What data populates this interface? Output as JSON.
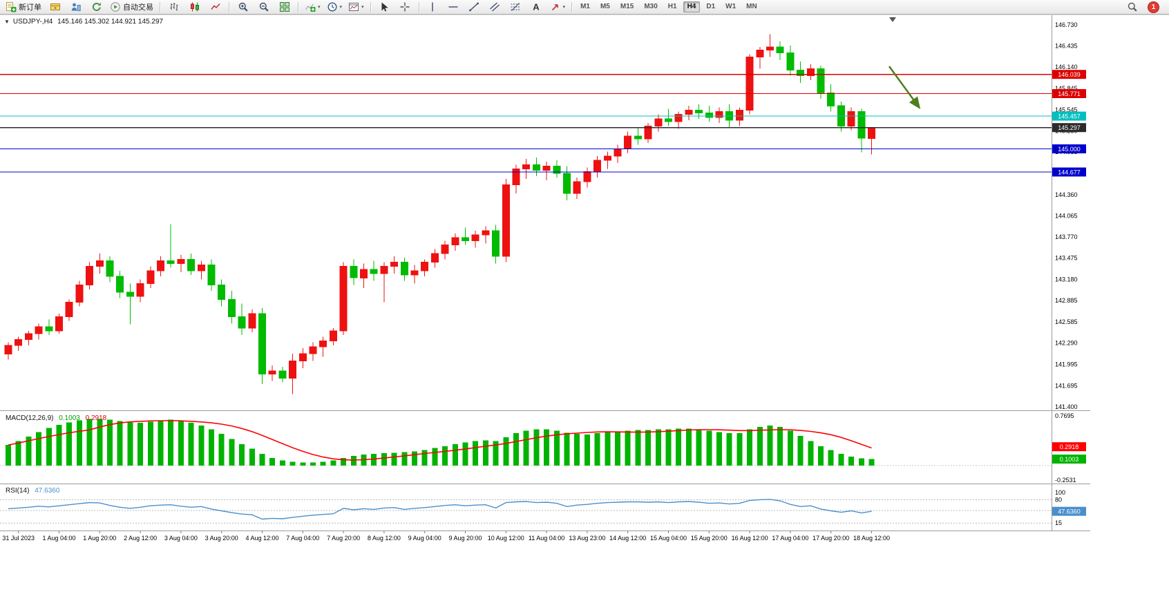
{
  "toolbar": {
    "button_groups": [
      [
        {
          "name": "new-order-button",
          "icon": "new-order-icon",
          "label": "新订单"
        },
        {
          "name": "market-watch-button",
          "icon": "market-watch-icon"
        },
        {
          "name": "navigator-button",
          "icon": "navigator-icon"
        },
        {
          "name": "refresh-button",
          "icon": "refresh-icon"
        },
        {
          "name": "auto-trading-button",
          "icon": "auto-trading-icon",
          "label": "自动交易"
        }
      ],
      [
        {
          "name": "bar-chart-button",
          "icon": "bar-chart-icon"
        },
        {
          "name": "candlestick-chart-button",
          "icon": "candlestick-chart-icon"
        },
        {
          "name": "line-chart-button",
          "icon": "line-chart-icon"
        }
      ],
      [
        {
          "name": "zoom-in-button",
          "icon": "zoom-in-icon"
        },
        {
          "name": "zoom-out-button",
          "icon": "zoom-out-icon"
        },
        {
          "name": "tile-windows-button",
          "icon": "tile-windows-icon"
        }
      ],
      [
        {
          "name": "indicators-button",
          "icon": "indicators-icon",
          "caret": true
        },
        {
          "name": "periods-button",
          "icon": "periods-icon",
          "caret": true
        },
        {
          "name": "templates-button",
          "icon": "templates-icon",
          "caret": true
        }
      ],
      [
        {
          "name": "cursor-button",
          "icon": "cursor-icon"
        },
        {
          "name": "crosshair-button",
          "icon": "crosshair-icon"
        }
      ],
      [
        {
          "name": "vertical-line-button",
          "icon": "vertical-line-icon"
        },
        {
          "name": "horizontal-line-button",
          "icon": "horizontal-line-icon"
        },
        {
          "name": "trendline-button",
          "icon": "trendline-icon"
        },
        {
          "name": "channel-button",
          "icon": "channel-icon"
        },
        {
          "name": "fibonacci-button",
          "icon": "fibonacci-icon"
        },
        {
          "name": "text-button",
          "icon": "text-icon"
        },
        {
          "name": "arrows-button",
          "icon": "arrows-icon",
          "caret": true
        }
      ]
    ],
    "timeframes": [
      "M1",
      "M5",
      "M15",
      "M30",
      "H1",
      "H4",
      "D1",
      "W1",
      "MN"
    ],
    "active_timeframe": "H4",
    "search_button": {
      "name": "search-button",
      "icon": "search-icon"
    },
    "notification_badge": "1"
  },
  "chart_data": [
    {
      "type": "candlestick",
      "symbol": "USDJPY-",
      "period": "H4",
      "header_symbol_period": "USDJPY-,H4",
      "header_ohlc": "145.146 145.302 144.921 145.297",
      "up_color": "#ee1111",
      "down_color": "#00bb00",
      "ylim": [
        141.4,
        146.73
      ],
      "y_axis_labels": [
        "146.730",
        "146.435",
        "146.140",
        "145.845",
        "145.545",
        "145.250",
        "144.955",
        "144.660",
        "144.360",
        "144.065",
        "143.770",
        "143.475",
        "143.180",
        "142.885",
        "142.585",
        "142.290",
        "141.995",
        "141.695",
        "141.400"
      ],
      "hlines": [
        {
          "value": 146.039,
          "label": "146.039",
          "color": "#dd0000"
        },
        {
          "value": 145.771,
          "label": "145.771",
          "color": "#dd0000"
        },
        {
          "value": 145.457,
          "label": "145.457",
          "color": "#00bfbf"
        },
        {
          "value": 145.297,
          "label": "145.297",
          "color": "#2b2b2b"
        },
        {
          "value": 145.0,
          "label": "145.000",
          "color": "#0000cc"
        },
        {
          "value": 144.677,
          "label": "144.677",
          "color": "#0000cc"
        }
      ],
      "time_labels": [
        "31 Jul 2023",
        "1 Aug 04:00",
        "1 Aug 20:00",
        "2 Aug 12:00",
        "3 Aug 04:00",
        "3 Aug 20:00",
        "4 Aug 12:00",
        "7 Aug 04:00",
        "7 Aug 20:00",
        "8 Aug 12:00",
        "9 Aug 04:00",
        "9 Aug 20:00",
        "10 Aug 12:00",
        "11 Aug 04:00",
        "13 Aug 23:00",
        "14 Aug 12:00",
        "15 Aug 04:00",
        "15 Aug 20:00",
        "16 Aug 12:00",
        "17 Aug 04:00",
        "17 Aug 20:00",
        "18 Aug 12:00"
      ],
      "first_label_bar": 1,
      "label_every_bars": 4,
      "arrow": {
        "color": "#4e7d1e"
      },
      "candles": [
        [
          142.14,
          142.3,
          142.06,
          142.26
        ],
        [
          142.26,
          142.38,
          142.18,
          142.34
        ],
        [
          142.34,
          142.46,
          142.26,
          142.42
        ],
        [
          142.42,
          142.56,
          142.34,
          142.52
        ],
        [
          142.52,
          142.62,
          142.4,
          142.46
        ],
        [
          142.46,
          142.7,
          142.42,
          142.66
        ],
        [
          142.66,
          142.9,
          142.6,
          142.86
        ],
        [
          142.86,
          143.16,
          142.8,
          143.1
        ],
        [
          143.1,
          143.42,
          143.04,
          143.36
        ],
        [
          143.36,
          143.54,
          143.26,
          143.44
        ],
        [
          143.44,
          143.5,
          143.14,
          143.22
        ],
        [
          143.22,
          143.3,
          142.92,
          143.0
        ],
        [
          143.0,
          143.12,
          142.55,
          142.94
        ],
        [
          142.94,
          143.18,
          142.86,
          143.12
        ],
        [
          143.12,
          143.36,
          143.06,
          143.3
        ],
        [
          143.3,
          143.5,
          143.22,
          143.44
        ],
        [
          143.44,
          143.95,
          143.34,
          143.4
        ],
        [
          143.4,
          143.52,
          143.28,
          143.46
        ],
        [
          143.46,
          143.54,
          143.24,
          143.3
        ],
        [
          143.3,
          143.44,
          143.18,
          143.38
        ],
        [
          143.38,
          143.46,
          143.02,
          143.1
        ],
        [
          143.1,
          143.18,
          142.8,
          142.9
        ],
        [
          142.9,
          143.02,
          142.56,
          142.66
        ],
        [
          142.66,
          142.84,
          142.4,
          142.5
        ],
        [
          142.5,
          142.76,
          142.44,
          142.7
        ],
        [
          142.7,
          142.78,
          141.72,
          141.86
        ],
        [
          141.86,
          141.98,
          141.76,
          141.9
        ],
        [
          141.9,
          141.96,
          141.74,
          141.8
        ],
        [
          141.8,
          142.14,
          141.58,
          142.04
        ],
        [
          142.04,
          142.22,
          141.94,
          142.14
        ],
        [
          142.14,
          142.3,
          142.04,
          142.24
        ],
        [
          142.24,
          142.38,
          142.1,
          142.32
        ],
        [
          142.32,
          142.5,
          142.26,
          142.46
        ],
        [
          142.46,
          143.42,
          142.4,
          143.36
        ],
        [
          143.36,
          143.46,
          143.1,
          143.2
        ],
        [
          143.2,
          143.4,
          143.06,
          143.32
        ],
        [
          143.32,
          143.44,
          143.16,
          143.26
        ],
        [
          143.26,
          143.42,
          142.86,
          143.36
        ],
        [
          143.36,
          143.5,
          143.26,
          143.42
        ],
        [
          143.42,
          143.48,
          143.16,
          143.24
        ],
        [
          143.24,
          143.38,
          143.12,
          143.3
        ],
        [
          143.3,
          143.46,
          143.22,
          143.42
        ],
        [
          143.42,
          143.6,
          143.34,
          143.54
        ],
        [
          143.54,
          143.72,
          143.46,
          143.66
        ],
        [
          143.66,
          143.82,
          143.58,
          143.76
        ],
        [
          143.76,
          143.9,
          143.66,
          143.72
        ],
        [
          143.72,
          143.86,
          143.62,
          143.8
        ],
        [
          143.8,
          143.92,
          143.68,
          143.86
        ],
        [
          143.86,
          143.94,
          143.4,
          143.5
        ],
        [
          143.5,
          144.58,
          143.42,
          144.5
        ],
        [
          144.5,
          144.78,
          144.38,
          144.72
        ],
        [
          144.72,
          144.86,
          144.58,
          144.78
        ],
        [
          144.78,
          144.88,
          144.62,
          144.7
        ],
        [
          144.7,
          144.82,
          144.56,
          144.76
        ],
        [
          144.76,
          144.84,
          144.6,
          144.66
        ],
        [
          144.66,
          144.76,
          144.28,
          144.38
        ],
        [
          144.38,
          144.6,
          144.3,
          144.54
        ],
        [
          144.54,
          144.74,
          144.46,
          144.68
        ],
        [
          144.68,
          144.9,
          144.6,
          144.84
        ],
        [
          144.84,
          144.96,
          144.72,
          144.9
        ],
        [
          144.9,
          145.06,
          144.8,
          145.0
        ],
        [
          145.0,
          145.24,
          144.94,
          145.18
        ],
        [
          145.18,
          145.3,
          145.06,
          145.14
        ],
        [
          145.14,
          145.36,
          145.08,
          145.32
        ],
        [
          145.32,
          145.48,
          145.24,
          145.42
        ],
        [
          145.42,
          145.56,
          145.32,
          145.38
        ],
        [
          145.38,
          145.52,
          145.28,
          145.48
        ],
        [
          145.48,
          145.6,
          145.4,
          145.54
        ],
        [
          145.54,
          145.62,
          145.42,
          145.5
        ],
        [
          145.5,
          145.6,
          145.38,
          145.44
        ],
        [
          145.44,
          145.58,
          145.36,
          145.52
        ],
        [
          145.52,
          145.62,
          145.3,
          145.4
        ],
        [
          145.4,
          145.58,
          145.32,
          145.54
        ],
        [
          145.54,
          146.32,
          145.48,
          146.28
        ],
        [
          146.28,
          146.42,
          146.12,
          146.38
        ],
        [
          146.38,
          146.6,
          146.28,
          146.42
        ],
        [
          146.42,
          146.5,
          146.24,
          146.34
        ],
        [
          146.34,
          146.44,
          146.02,
          146.1
        ],
        [
          146.1,
          146.22,
          145.92,
          146.02
        ],
        [
          146.02,
          146.18,
          145.96,
          146.12
        ],
        [
          146.12,
          146.16,
          145.7,
          145.78
        ],
        [
          145.78,
          145.9,
          145.52,
          145.6
        ],
        [
          145.6,
          145.66,
          145.24,
          145.32
        ],
        [
          145.32,
          145.58,
          145.26,
          145.52
        ],
        [
          145.52,
          145.56,
          144.95,
          145.15
        ],
        [
          145.146,
          145.302,
          144.921,
          145.297
        ]
      ]
    },
    {
      "type": "bar",
      "name": "MACD",
      "title": "MACD(12,26,9)",
      "main_value": "0.1003",
      "signal_value": "0.2918",
      "axis_max": 0.7695,
      "axis_min": -0.2531,
      "axis_labels": [
        "0.7695",
        "-0.2531"
      ],
      "histogram_color": "#00b300",
      "signal_color": "#ff0000",
      "signal_period": 9,
      "values": [
        0.32,
        0.38,
        0.45,
        0.52,
        0.58,
        0.63,
        0.67,
        0.7,
        0.72,
        0.72,
        0.71,
        0.69,
        0.67,
        0.66,
        0.68,
        0.7,
        0.71,
        0.69,
        0.66,
        0.62,
        0.56,
        0.49,
        0.41,
        0.33,
        0.26,
        0.18,
        0.12,
        0.08,
        0.06,
        0.05,
        0.05,
        0.06,
        0.08,
        0.12,
        0.15,
        0.17,
        0.18,
        0.19,
        0.2,
        0.21,
        0.22,
        0.24,
        0.27,
        0.3,
        0.33,
        0.36,
        0.38,
        0.39,
        0.38,
        0.44,
        0.5,
        0.54,
        0.56,
        0.56,
        0.54,
        0.51,
        0.49,
        0.48,
        0.5,
        0.52,
        0.53,
        0.54,
        0.55,
        0.55,
        0.56,
        0.56,
        0.57,
        0.57,
        0.56,
        0.54,
        0.52,
        0.5,
        0.5,
        0.56,
        0.6,
        0.62,
        0.6,
        0.54,
        0.46,
        0.38,
        0.3,
        0.24,
        0.18,
        0.14,
        0.11,
        0.1
      ]
    },
    {
      "type": "line",
      "name": "RSI",
      "title": "RSI(14)",
      "value": "47.6360",
      "line_color": "#4a8fcc",
      "axis_labels": [
        "100",
        "80",
        "50",
        "15"
      ],
      "levels": [
        80,
        50,
        15
      ],
      "values": [
        55,
        57,
        59,
        62,
        60,
        63,
        66,
        69,
        72,
        71,
        64,
        59,
        56,
        59,
        63,
        65,
        66,
        62,
        59,
        61,
        54,
        49,
        44,
        40,
        38,
        26,
        28,
        27,
        31,
        34,
        37,
        39,
        41,
        56,
        52,
        55,
        53,
        57,
        58,
        53,
        56,
        58,
        61,
        64,
        66,
        63,
        65,
        66,
        57,
        72,
        74,
        75,
        72,
        73,
        70,
        61,
        65,
        67,
        70,
        72,
        73,
        74,
        74,
        73,
        74,
        72,
        74,
        75,
        73,
        70,
        71,
        68,
        70,
        78,
        80,
        81,
        77,
        67,
        61,
        63,
        54,
        49,
        45,
        49,
        43,
        47.64
      ]
    }
  ]
}
